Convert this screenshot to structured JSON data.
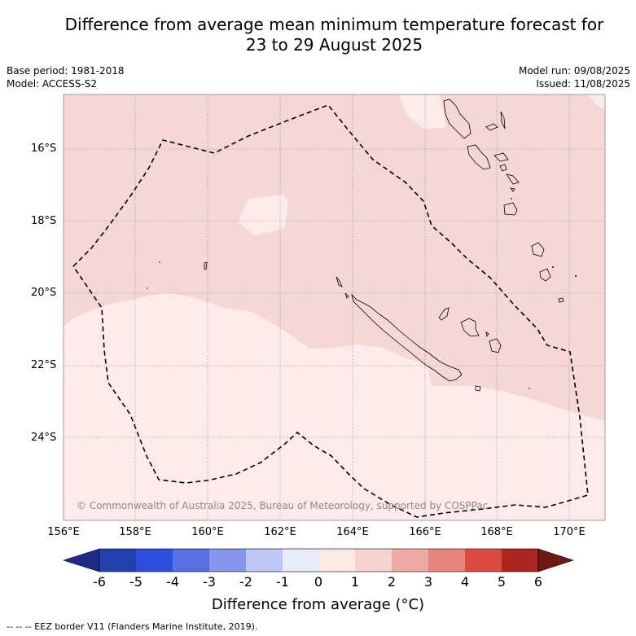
{
  "title_line1": "Difference from average mean minimum temperature forecast for",
  "title_line2": "23 to 29 August 2025",
  "base_period": "Base period: 1981-2018",
  "model": "Model: ACCESS-S2",
  "model_run": "Model run: 09/08/2025",
  "issued": "Issued: 11/08/2025",
  "latitude_labels": [
    "16°S",
    "18°S",
    "20°S",
    "22°S",
    "24°S"
  ],
  "longitude_labels": [
    "156°E",
    "158°E",
    "160°E",
    "162°E",
    "164°E",
    "166°E",
    "168°E",
    "170°E"
  ],
  "copyright": "© Commonwealth of Australia 2025, Bureau of Meteorology, supported by COSPPac",
  "colorbar": {
    "ticks": [
      "-6",
      "-5",
      "-4",
      "-3",
      "-2",
      "-1",
      "0",
      "1",
      "2",
      "3",
      "4",
      "5",
      "6"
    ],
    "colors": [
      "#1e2a86",
      "#2240ae",
      "#2f4ee0",
      "#5670e4",
      "#8796eb",
      "#c0c6f4",
      "#e8ebfa",
      "#fde9e6",
      "#f7d3cf",
      "#efaaa5",
      "#e8857f",
      "#db4a41",
      "#ad2720",
      "#6e1a14"
    ],
    "label": "Difference from average (°C)"
  },
  "footer": "--  --  -- EEZ border V11 (Flanders Marine Institute, 2019).",
  "fill_colors": {
    "anomaly_1_to_2": "#f5d7d5",
    "anomaly_0_to_1": "#fcebea"
  }
}
